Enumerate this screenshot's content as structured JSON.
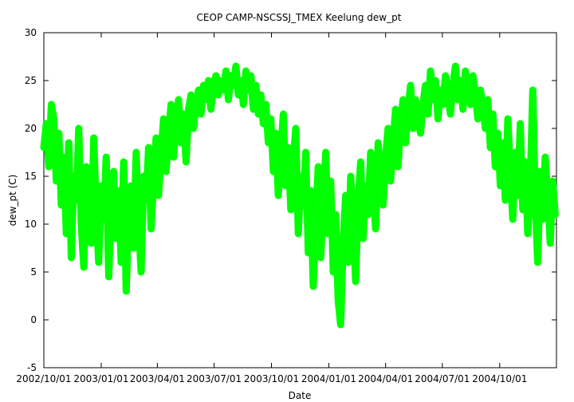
{
  "chart_data": {
    "type": "scatter",
    "title": "CEOP CAMP-NSCSSJ_TMEX Keelung  dew_pt",
    "xlabel": "Date",
    "ylabel": "dew_pt (C)",
    "xlim": [
      "2002-10-01",
      "2004-12-31"
    ],
    "ylim": [
      -5,
      30
    ],
    "x_ticks": [
      "2002-10-01",
      "2003-01-01",
      "2003-04-01",
      "2003-07-01",
      "2003-10-01",
      "2004-01-01",
      "2004-04-01",
      "2004-07-01",
      "2004-10-01"
    ],
    "x_tick_labels": [
      "2002/10/01",
      "2003/01/01",
      "2003/04/01",
      "2003/07/01",
      "2003/10/01",
      "2004/01/01",
      "2004/04/01",
      "2004/07/01",
      "2004/10/01"
    ],
    "y_ticks": [
      -5,
      0,
      5,
      10,
      15,
      20,
      25,
      30
    ],
    "y_tick_labels": [
      "-5",
      "0",
      "5",
      "10",
      "15",
      "20",
      "25",
      "30"
    ],
    "marker_color": "#00ff00",
    "grid": false,
    "series": [
      {
        "points": [
          [
            "2002-10-01",
            18.0
          ],
          [
            "2002-10-05",
            20.5
          ],
          [
            "2002-10-09",
            16.0
          ],
          [
            "2002-10-13",
            22.5
          ],
          [
            "2002-10-17",
            21.0
          ],
          [
            "2002-10-21",
            14.5
          ],
          [
            "2002-10-25",
            19.5
          ],
          [
            "2002-10-29",
            12.0
          ],
          [
            "2002-11-02",
            17.0
          ],
          [
            "2002-11-06",
            9.0
          ],
          [
            "2002-11-10",
            18.5
          ],
          [
            "2002-11-14",
            6.5
          ],
          [
            "2002-11-18",
            15.0
          ],
          [
            "2002-11-22",
            12.5
          ],
          [
            "2002-11-26",
            20.0
          ],
          [
            "2002-11-30",
            10.0
          ],
          [
            "2002-12-04",
            5.5
          ],
          [
            "2002-12-08",
            16.0
          ],
          [
            "2002-12-12",
            13.0
          ],
          [
            "2002-12-16",
            8.0
          ],
          [
            "2002-12-20",
            19.0
          ],
          [
            "2002-12-24",
            11.5
          ],
          [
            "2002-12-28",
            6.0
          ],
          [
            "2003-01-01",
            14.0
          ],
          [
            "2003-01-05",
            10.5
          ],
          [
            "2003-01-09",
            17.0
          ],
          [
            "2003-01-13",
            4.5
          ],
          [
            "2003-01-17",
            12.0
          ],
          [
            "2003-01-21",
            15.5
          ],
          [
            "2003-01-25",
            8.5
          ],
          [
            "2003-01-29",
            13.5
          ],
          [
            "2003-02-02",
            6.0
          ],
          [
            "2003-02-06",
            16.5
          ],
          [
            "2003-02-10",
            3.0
          ],
          [
            "2003-02-14",
            11.0
          ],
          [
            "2003-02-18",
            14.0
          ],
          [
            "2003-02-22",
            7.5
          ],
          [
            "2003-02-26",
            17.5
          ],
          [
            "2003-03-02",
            10.0
          ],
          [
            "2003-03-06",
            5.0
          ],
          [
            "2003-03-10",
            15.0
          ],
          [
            "2003-03-14",
            12.5
          ],
          [
            "2003-03-18",
            18.0
          ],
          [
            "2003-03-22",
            9.5
          ],
          [
            "2003-03-26",
            14.5
          ],
          [
            "2003-03-30",
            19.0
          ],
          [
            "2003-04-03",
            13.0
          ],
          [
            "2003-04-07",
            17.5
          ],
          [
            "2003-04-11",
            21.0
          ],
          [
            "2003-04-15",
            15.5
          ],
          [
            "2003-04-19",
            19.5
          ],
          [
            "2003-04-23",
            22.5
          ],
          [
            "2003-04-27",
            17.0
          ],
          [
            "2003-05-01",
            20.5
          ],
          [
            "2003-05-05",
            23.0
          ],
          [
            "2003-05-09",
            18.5
          ],
          [
            "2003-05-13",
            21.5
          ],
          [
            "2003-05-17",
            16.5
          ],
          [
            "2003-05-21",
            22.0
          ],
          [
            "2003-05-25",
            23.5
          ],
          [
            "2003-05-29",
            20.0
          ],
          [
            "2003-06-02",
            22.5
          ],
          [
            "2003-06-06",
            24.0
          ],
          [
            "2003-06-10",
            21.5
          ],
          [
            "2003-06-14",
            24.5
          ],
          [
            "2003-06-18",
            23.0
          ],
          [
            "2003-06-22",
            25.0
          ],
          [
            "2003-06-26",
            22.0
          ],
          [
            "2003-06-30",
            24.5
          ],
          [
            "2003-07-04",
            25.5
          ],
          [
            "2003-07-08",
            23.5
          ],
          [
            "2003-07-12",
            25.0
          ],
          [
            "2003-07-16",
            24.0
          ],
          [
            "2003-07-20",
            26.0
          ],
          [
            "2003-07-24",
            23.0
          ],
          [
            "2003-07-28",
            25.5
          ],
          [
            "2003-08-01",
            24.5
          ],
          [
            "2003-08-05",
            26.5
          ],
          [
            "2003-08-09",
            23.5
          ],
          [
            "2003-08-13",
            25.0
          ],
          [
            "2003-08-17",
            22.5
          ],
          [
            "2003-08-21",
            26.0
          ],
          [
            "2003-08-25",
            24.0
          ],
          [
            "2003-08-29",
            25.5
          ],
          [
            "2003-09-02",
            22.0
          ],
          [
            "2003-09-06",
            24.5
          ],
          [
            "2003-09-10",
            21.5
          ],
          [
            "2003-09-14",
            23.5
          ],
          [
            "2003-09-18",
            20.5
          ],
          [
            "2003-09-22",
            22.5
          ],
          [
            "2003-09-26",
            18.5
          ],
          [
            "2003-09-30",
            21.0
          ],
          [
            "2003-10-04",
            15.5
          ],
          [
            "2003-10-08",
            19.5
          ],
          [
            "2003-10-12",
            13.0
          ],
          [
            "2003-10-16",
            17.5
          ],
          [
            "2003-10-20",
            21.5
          ],
          [
            "2003-10-24",
            14.0
          ],
          [
            "2003-10-28",
            18.0
          ],
          [
            "2003-11-01",
            11.5
          ],
          [
            "2003-11-05",
            16.5
          ],
          [
            "2003-11-09",
            20.0
          ],
          [
            "2003-11-13",
            9.0
          ],
          [
            "2003-11-17",
            15.0
          ],
          [
            "2003-11-21",
            12.0
          ],
          [
            "2003-11-25",
            17.5
          ],
          [
            "2003-11-29",
            7.0
          ],
          [
            "2003-12-03",
            13.5
          ],
          [
            "2003-12-07",
            3.5
          ],
          [
            "2003-12-11",
            10.5
          ],
          [
            "2003-12-15",
            16.0
          ],
          [
            "2003-12-19",
            6.5
          ],
          [
            "2003-12-23",
            12.0
          ],
          [
            "2003-12-27",
            17.5
          ],
          [
            "2003-12-31",
            9.0
          ],
          [
            "2004-01-04",
            14.5
          ],
          [
            "2004-01-08",
            5.0
          ],
          [
            "2004-01-12",
            11.0
          ],
          [
            "2004-01-16",
            2.0
          ],
          [
            "2004-01-20",
            -0.5
          ],
          [
            "2004-01-24",
            8.0
          ],
          [
            "2004-01-28",
            13.0
          ],
          [
            "2004-02-01",
            6.0
          ],
          [
            "2004-02-05",
            15.0
          ],
          [
            "2004-02-09",
            10.0
          ],
          [
            "2004-02-13",
            4.0
          ],
          [
            "2004-02-17",
            12.5
          ],
          [
            "2004-02-21",
            16.5
          ],
          [
            "2004-02-25",
            8.5
          ],
          [
            "2004-02-29",
            14.0
          ],
          [
            "2004-03-04",
            11.0
          ],
          [
            "2004-03-08",
            17.5
          ],
          [
            "2004-03-12",
            13.5
          ],
          [
            "2004-03-16",
            9.5
          ],
          [
            "2004-03-20",
            18.5
          ],
          [
            "2004-03-24",
            15.0
          ],
          [
            "2004-03-28",
            12.0
          ],
          [
            "2004-04-01",
            17.0
          ],
          [
            "2004-04-05",
            20.0
          ],
          [
            "2004-04-09",
            14.5
          ],
          [
            "2004-04-13",
            18.5
          ],
          [
            "2004-04-17",
            22.0
          ],
          [
            "2004-04-21",
            16.0
          ],
          [
            "2004-04-25",
            20.5
          ],
          [
            "2004-04-29",
            23.0
          ],
          [
            "2004-05-03",
            18.5
          ],
          [
            "2004-05-07",
            22.0
          ],
          [
            "2004-05-11",
            24.5
          ],
          [
            "2004-05-15",
            20.0
          ],
          [
            "2004-05-19",
            23.0
          ],
          [
            "2004-05-23",
            21.0
          ],
          [
            "2004-05-27",
            19.5
          ],
          [
            "2004-05-31",
            22.5
          ],
          [
            "2004-06-04",
            24.5
          ],
          [
            "2004-06-08",
            21.5
          ],
          [
            "2004-06-12",
            26.0
          ],
          [
            "2004-06-16",
            23.0
          ],
          [
            "2004-06-20",
            25.0
          ],
          [
            "2004-06-24",
            21.0
          ],
          [
            "2004-06-28",
            24.0
          ],
          [
            "2004-07-02",
            22.5
          ],
          [
            "2004-07-06",
            25.5
          ],
          [
            "2004-07-10",
            23.5
          ],
          [
            "2004-07-14",
            21.5
          ],
          [
            "2004-07-18",
            24.5
          ],
          [
            "2004-07-22",
            26.5
          ],
          [
            "2004-07-26",
            23.0
          ],
          [
            "2004-07-30",
            25.0
          ],
          [
            "2004-08-03",
            22.0
          ],
          [
            "2004-08-07",
            26.0
          ],
          [
            "2004-08-11",
            24.0
          ],
          [
            "2004-08-15",
            22.5
          ],
          [
            "2004-08-19",
            25.5
          ],
          [
            "2004-08-23",
            23.5
          ],
          [
            "2004-08-27",
            21.0
          ],
          [
            "2004-08-31",
            24.0
          ],
          [
            "2004-09-04",
            22.5
          ],
          [
            "2004-09-08",
            20.0
          ],
          [
            "2004-09-12",
            23.0
          ],
          [
            "2004-09-16",
            18.0
          ],
          [
            "2004-09-20",
            21.5
          ],
          [
            "2004-09-24",
            16.0
          ],
          [
            "2004-09-28",
            19.5
          ],
          [
            "2004-10-02",
            14.0
          ],
          [
            "2004-10-06",
            18.5
          ],
          [
            "2004-10-10",
            12.5
          ],
          [
            "2004-10-14",
            21.0
          ],
          [
            "2004-10-18",
            15.5
          ],
          [
            "2004-10-22",
            10.5
          ],
          [
            "2004-10-26",
            17.5
          ],
          [
            "2004-10-30",
            13.0
          ],
          [
            "2004-11-03",
            20.5
          ],
          [
            "2004-11-07",
            11.5
          ],
          [
            "2004-11-11",
            16.5
          ],
          [
            "2004-11-15",
            9.0
          ],
          [
            "2004-11-19",
            14.0
          ],
          [
            "2004-11-23",
            24.0
          ],
          [
            "2004-11-27",
            12.5
          ],
          [
            "2004-12-01",
            6.0
          ],
          [
            "2004-12-05",
            15.5
          ],
          [
            "2004-12-09",
            10.5
          ],
          [
            "2004-12-13",
            17.0
          ],
          [
            "2004-12-17",
            13.0
          ],
          [
            "2004-12-21",
            8.0
          ],
          [
            "2004-12-25",
            14.5
          ],
          [
            "2004-12-29",
            11.0
          ]
        ]
      }
    ]
  }
}
